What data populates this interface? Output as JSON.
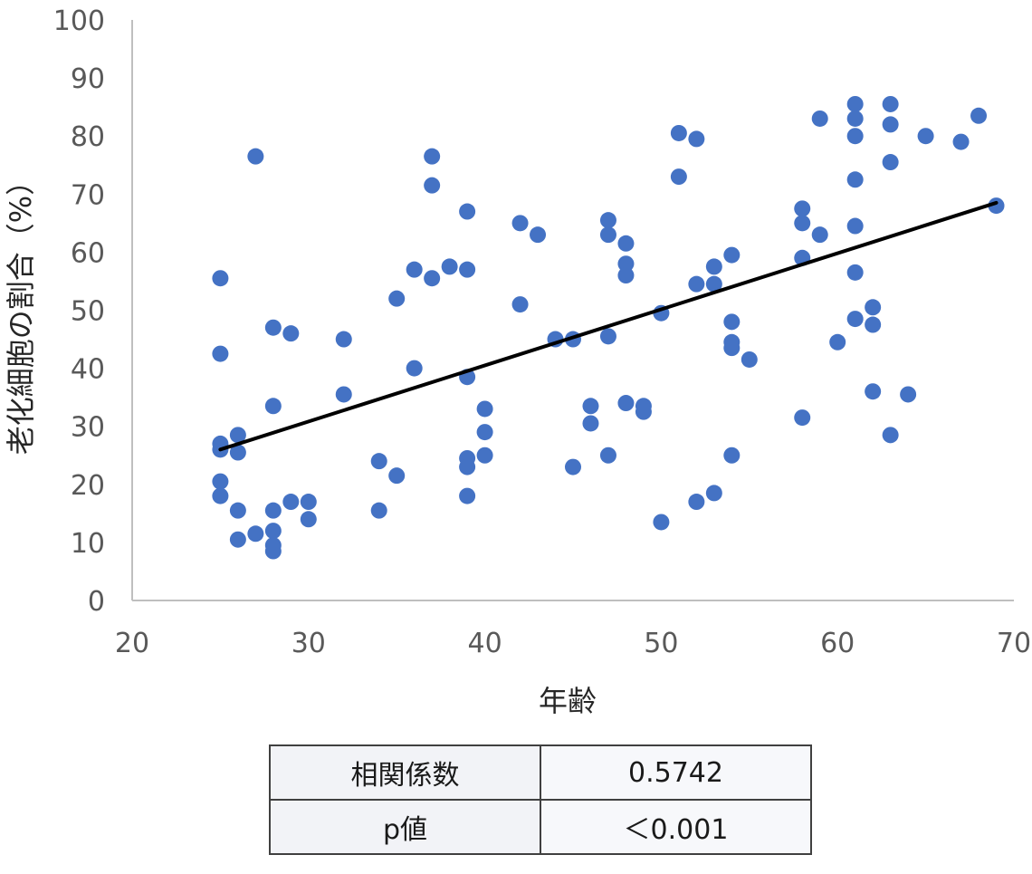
{
  "chart_data": {
    "type": "scatter",
    "title": "",
    "xlabel": "年齢",
    "ylabel": "老化細胞の割合（%）",
    "xlim": [
      20,
      70
    ],
    "ylim": [
      0,
      100
    ],
    "xticks": [
      20,
      30,
      40,
      50,
      60,
      70
    ],
    "yticks": [
      0,
      10,
      20,
      30,
      40,
      50,
      60,
      70,
      80,
      90,
      100
    ],
    "grid": false,
    "point_color": "#4472c4",
    "trendline_color": "#000000",
    "trendline": {
      "x": [
        25,
        69
      ],
      "y": [
        26,
        68.5
      ]
    },
    "points": [
      [
        25,
        55.5
      ],
      [
        25,
        42.5
      ],
      [
        25,
        27
      ],
      [
        25,
        26
      ],
      [
        25,
        20.5
      ],
      [
        25,
        18
      ],
      [
        26,
        28.5
      ],
      [
        26,
        25.5
      ],
      [
        26,
        15.5
      ],
      [
        26,
        10.5
      ],
      [
        27,
        76.5
      ],
      [
        27,
        11.5
      ],
      [
        28,
        47
      ],
      [
        28,
        33.5
      ],
      [
        28,
        15.5
      ],
      [
        28,
        12
      ],
      [
        28,
        9.5
      ],
      [
        28,
        8.5
      ],
      [
        29,
        46
      ],
      [
        29,
        17
      ],
      [
        30,
        17
      ],
      [
        30,
        14
      ],
      [
        32,
        45
      ],
      [
        32,
        35.5
      ],
      [
        34,
        24
      ],
      [
        34,
        15.5
      ],
      [
        35,
        52
      ],
      [
        35,
        21.5
      ],
      [
        36,
        57
      ],
      [
        36,
        40
      ],
      [
        37,
        76.5
      ],
      [
        37,
        71.5
      ],
      [
        37,
        55.5
      ],
      [
        38,
        57.5
      ],
      [
        39,
        67
      ],
      [
        39,
        57
      ],
      [
        39,
        38.5
      ],
      [
        39,
        24.5
      ],
      [
        39,
        23
      ],
      [
        39,
        18
      ],
      [
        40,
        33
      ],
      [
        40,
        29
      ],
      [
        40,
        25
      ],
      [
        42,
        65
      ],
      [
        42,
        51
      ],
      [
        43,
        63
      ],
      [
        44,
        45
      ],
      [
        45,
        45
      ],
      [
        45,
        23
      ],
      [
        46,
        33.5
      ],
      [
        46,
        30.5
      ],
      [
        47,
        65.5
      ],
      [
        47,
        63
      ],
      [
        47,
        45.5
      ],
      [
        47,
        25
      ],
      [
        48,
        61.5
      ],
      [
        48,
        58
      ],
      [
        48,
        56
      ],
      [
        48,
        34
      ],
      [
        49,
        33.5
      ],
      [
        49,
        32.5
      ],
      [
        50,
        49.5
      ],
      [
        50,
        13.5
      ],
      [
        51,
        80.5
      ],
      [
        51,
        73
      ],
      [
        52,
        79.5
      ],
      [
        52,
        54.5
      ],
      [
        52,
        17
      ],
      [
        53,
        57.5
      ],
      [
        53,
        54.5
      ],
      [
        53,
        18.5
      ],
      [
        54,
        59.5
      ],
      [
        54,
        48
      ],
      [
        54,
        44.5
      ],
      [
        54,
        43.5
      ],
      [
        54,
        25
      ],
      [
        55,
        41.5
      ],
      [
        58,
        67.5
      ],
      [
        58,
        65
      ],
      [
        58,
        59
      ],
      [
        58,
        31.5
      ],
      [
        59,
        83
      ],
      [
        59,
        63
      ],
      [
        60,
        44.5
      ],
      [
        61,
        85.5
      ],
      [
        61,
        83
      ],
      [
        61,
        80
      ],
      [
        61,
        72.5
      ],
      [
        61,
        64.5
      ],
      [
        61,
        56.5
      ],
      [
        61,
        48.5
      ],
      [
        62,
        50.5
      ],
      [
        62,
        47.5
      ],
      [
        62,
        36
      ],
      [
        63,
        85.5
      ],
      [
        63,
        82
      ],
      [
        63,
        75.5
      ],
      [
        63,
        28.5
      ],
      [
        64,
        35.5
      ],
      [
        65,
        80
      ],
      [
        67,
        79
      ],
      [
        68,
        83.5
      ],
      [
        69,
        68
      ]
    ]
  },
  "stats_table": {
    "rows": [
      {
        "label": "相関係数",
        "value": "0.5742"
      },
      {
        "label": "p値",
        "value": "＜0.001"
      }
    ]
  }
}
